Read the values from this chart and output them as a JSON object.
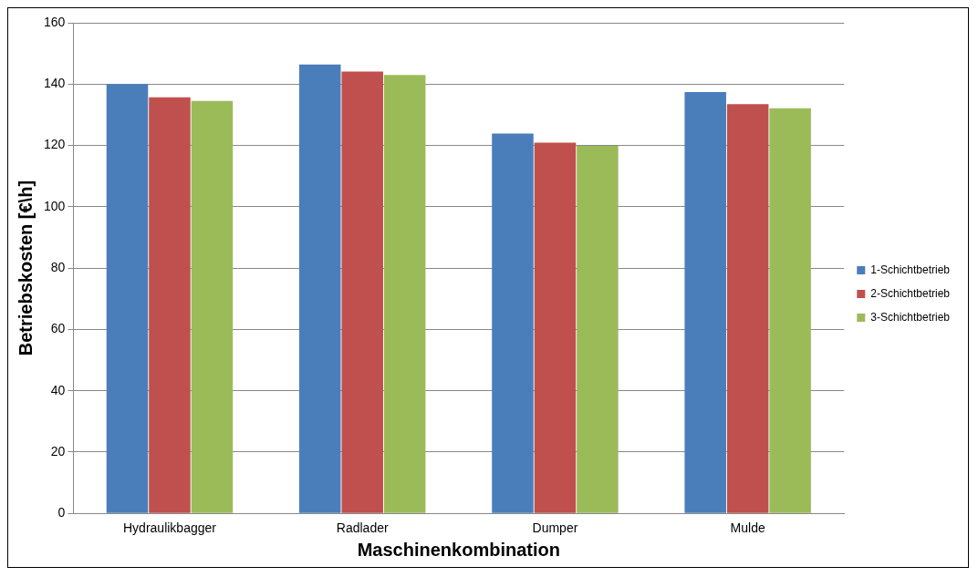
{
  "chart_data": {
    "type": "bar",
    "xlabel": "Maschinenkombination",
    "ylabel": "Betriebskosten [€\\h]",
    "categories": [
      "Hydraulikbagger",
      "Radlader",
      "Dumper",
      "Mulde"
    ],
    "series": [
      {
        "name": "1-Schichtbetrieb",
        "color": "#4a7ebb",
        "values": [
          140,
          146.4,
          123.9,
          137.4
        ]
      },
      {
        "name": "2-Schichtbetrieb",
        "color": "#c0504d",
        "values": [
          135.7,
          144.1,
          120.9,
          133.5
        ]
      },
      {
        "name": "3-Schichtbetrieb",
        "color": "#9bbb59",
        "values": [
          134.5,
          143,
          119.9,
          132.1
        ]
      }
    ],
    "ylim": [
      0,
      160
    ],
    "yticks": [
      0,
      20,
      40,
      60,
      80,
      100,
      120,
      140,
      160
    ],
    "grid": "y",
    "legend": "right"
  }
}
